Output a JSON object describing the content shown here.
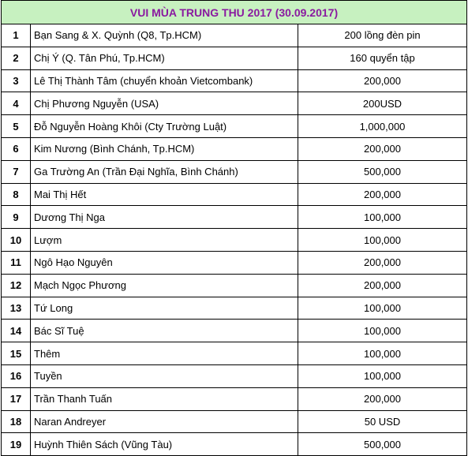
{
  "title": "VUI MÙA TRUNG THU 2017 (30.09.2017)",
  "rows": [
    {
      "no": "1",
      "name": "Bạn Sang & X. Quỳnh (Q8, Tp.HCM)",
      "amount": "200 lồng đèn pin"
    },
    {
      "no": "2",
      "name": "Chị Ý (Q. Tân Phú, Tp.HCM)",
      "amount": "160 quyển tập"
    },
    {
      "no": "3",
      "name": "Lê Thị Thành Tâm (chuyển khoản Vietcombank)",
      "amount": "200,000"
    },
    {
      "no": "4",
      "name": "Chị Phương Nguyễn (USA)",
      "amount": "200USD"
    },
    {
      "no": "5",
      "name": "Đỗ Nguyễn Hoàng Khôi (Cty Trường Luật)",
      "amount": "1,000,000"
    },
    {
      "no": "6",
      "name": "Kim Nương (Bình Chánh, Tp.HCM)",
      "amount": "200,000"
    },
    {
      "no": "7",
      "name": "Ga Trường An (Trần Đại Nghĩa, Bình Chánh)",
      "amount": "500,000"
    },
    {
      "no": "8",
      "name": "Mai Thị Hết",
      "amount": "200,000"
    },
    {
      "no": "9",
      "name": "Dương Thị Nga",
      "amount": "100,000"
    },
    {
      "no": "10",
      "name": "Lượm",
      "amount": "100,000"
    },
    {
      "no": "11",
      "name": "Ngô Hạo Nguyên",
      "amount": "200,000"
    },
    {
      "no": "12",
      "name": "Mạch Ngọc Phương",
      "amount": "200,000"
    },
    {
      "no": "13",
      "name": "Tứ Long",
      "amount": "100,000"
    },
    {
      "no": "14",
      "name": "Bác Sĩ Tuệ",
      "amount": "100,000"
    },
    {
      "no": "15",
      "name": "Thêm",
      "amount": "100,000"
    },
    {
      "no": "16",
      "name": "Tuyền",
      "amount": "100,000"
    },
    {
      "no": "17",
      "name": "Trần Thanh Tuấn",
      "amount": "200,000"
    },
    {
      "no": "18",
      "name": "Naran Andreyer",
      "amount": "50 USD"
    },
    {
      "no": "19",
      "name": "Huỳnh Thiên Sách (Vũng Tàu)",
      "amount": "500,000"
    }
  ]
}
